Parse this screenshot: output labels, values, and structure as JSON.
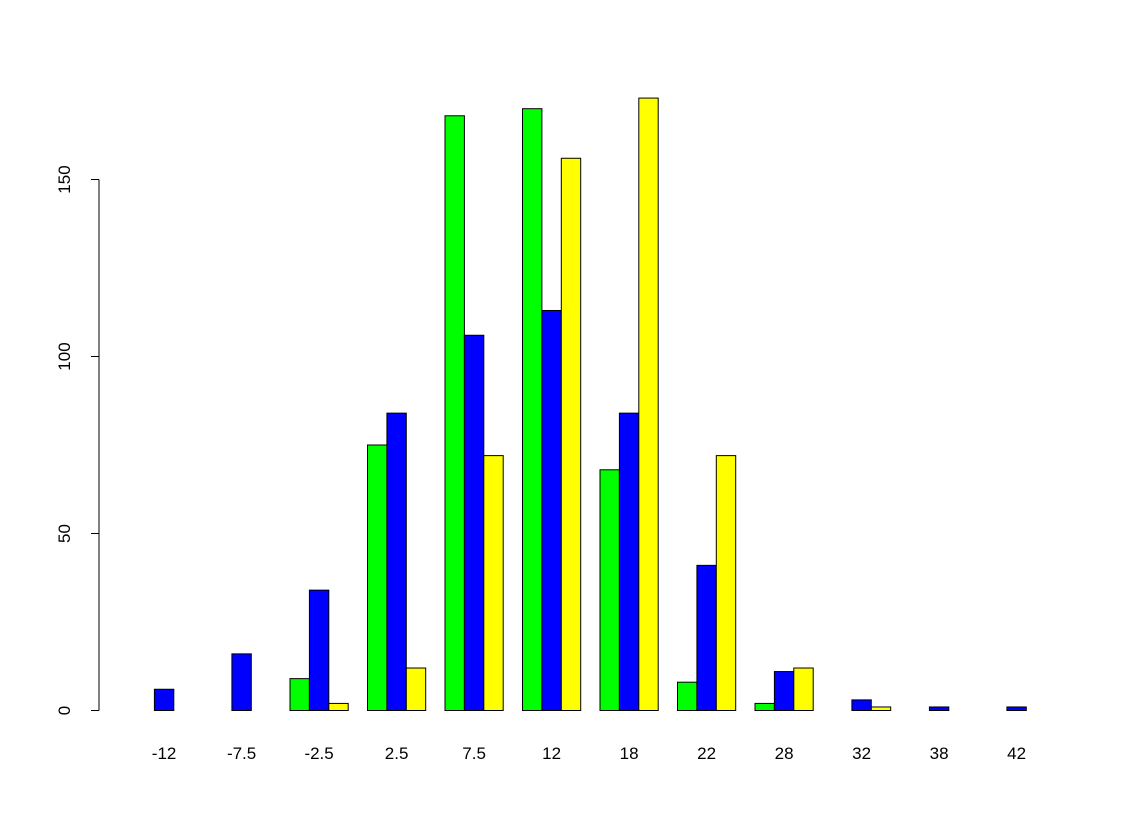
{
  "chart_data": {
    "type": "bar",
    "title": "",
    "xlabel": "",
    "ylabel": "",
    "categories": [
      "-12",
      "-7.5",
      "-2.5",
      "2.5",
      "7.5",
      "12",
      "18",
      "22",
      "28",
      "32",
      "38",
      "42"
    ],
    "series": [
      {
        "color": "#00ff00",
        "values": [
          0,
          0,
          9,
          75,
          168,
          170,
          68,
          8,
          2,
          0,
          0,
          0
        ]
      },
      {
        "color": "#0000ff",
        "values": [
          6,
          16,
          34,
          84,
          106,
          113,
          84,
          41,
          11,
          3,
          1,
          1
        ]
      },
      {
        "color": "#ffff00",
        "values": [
          0,
          0,
          2,
          12,
          72,
          156,
          173,
          72,
          12,
          1,
          0,
          0
        ]
      }
    ],
    "ylim": [
      0,
      173
    ],
    "y_ticks": [
      "0",
      "50",
      "100",
      "150"
    ],
    "grid": false,
    "legend": "none",
    "layout": "grouped"
  }
}
